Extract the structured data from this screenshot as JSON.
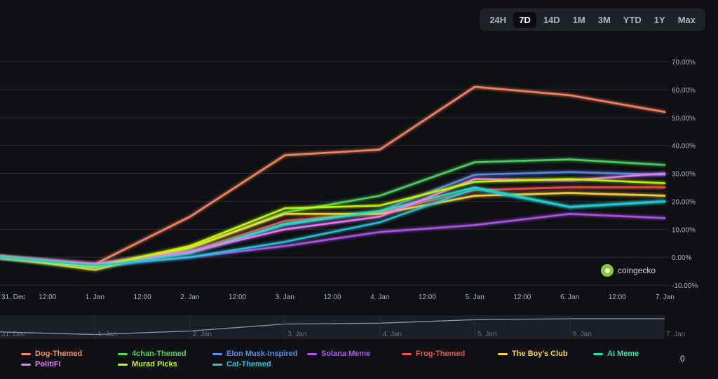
{
  "range_selector": [
    "24H",
    "7D",
    "14D",
    "1M",
    "3M",
    "YTD",
    "1Y",
    "Max"
  ],
  "range_active": "7D",
  "watermark": "coingecko",
  "legend_more": "0",
  "chart_data": {
    "type": "line",
    "x": [
      "31. Dec",
      "1. Jan",
      "2. Jan",
      "3. Jan",
      "4. Jan",
      "5. Jan",
      "6. Jan",
      "7. Jan"
    ],
    "x_tick_labels": [
      "31. Dec",
      "12:00",
      "1. Jan",
      "12:00",
      "2. Jan",
      "12:00",
      "3. Jan",
      "12:00",
      "4. Jan",
      "12:00",
      "5. Jan",
      "12:00",
      "6. Jan",
      "12:00",
      "7. Jan"
    ],
    "navigator_labels": [
      "31. Dec",
      "1. Jan",
      "2. Jan",
      "3. Jan",
      "4. Jan",
      "5. Jan",
      "6. Jan",
      "7. Jan"
    ],
    "y_tick_labels": [
      "70.00%",
      "60.00%",
      "50.00%",
      "40.00%",
      "30.00%",
      "20.00%",
      "10.00%",
      "0.00%",
      "-10.00%"
    ],
    "ylim": [
      -10,
      70
    ],
    "grid": true,
    "legend_position": "bottom",
    "series": [
      {
        "name": "Dog-Themed",
        "color": "#ff8a65",
        "values": [
          0,
          -2.5,
          14.5,
          36.5,
          38.5,
          61,
          58,
          52
        ]
      },
      {
        "name": "4chan-Themed",
        "color": "#4cd964",
        "values": [
          0,
          -3,
          3,
          16,
          22,
          34,
          35,
          33
        ]
      },
      {
        "name": "Elon Musk-Inspired",
        "color": "#5b8def",
        "values": [
          0,
          -3,
          1.5,
          11.5,
          16.5,
          29.5,
          30.5,
          29.5
        ]
      },
      {
        "name": "Solana Meme",
        "color": "#b455f0",
        "values": [
          0,
          -3,
          0,
          4,
          9,
          11.5,
          15.5,
          14
        ]
      },
      {
        "name": "Frog-Themed",
        "color": "#ef5350",
        "values": [
          0,
          -2.5,
          2,
          13,
          16,
          24,
          25,
          25
        ]
      },
      {
        "name": "The Boy's Club",
        "color": "#ffd740",
        "values": [
          0,
          -4.5,
          3.5,
          15.5,
          15.5,
          22,
          23,
          22
        ]
      },
      {
        "name": "AI Meme",
        "color": "#1de9b6",
        "values": [
          0,
          -3.5,
          1.5,
          12,
          16.5,
          25,
          18,
          20
        ]
      },
      {
        "name": "PolitiFi",
        "color": "#ea80fc",
        "values": [
          0,
          -2.5,
          2,
          10,
          14.5,
          28,
          27.5,
          30
        ]
      },
      {
        "name": "Murad Picks",
        "color": "#c6ff00",
        "values": [
          0,
          -3.5,
          4,
          17.5,
          18.5,
          27,
          28,
          26.5
        ]
      },
      {
        "name": "Cat-Themed",
        "color": "#26c6da",
        "values": [
          0,
          -3,
          0,
          5.5,
          12.5,
          24.5,
          18,
          20
        ]
      }
    ],
    "navigator_values": [
      -1.5,
      -3,
      -1,
      3,
      3.5,
      5.5,
      6,
      6
    ]
  }
}
